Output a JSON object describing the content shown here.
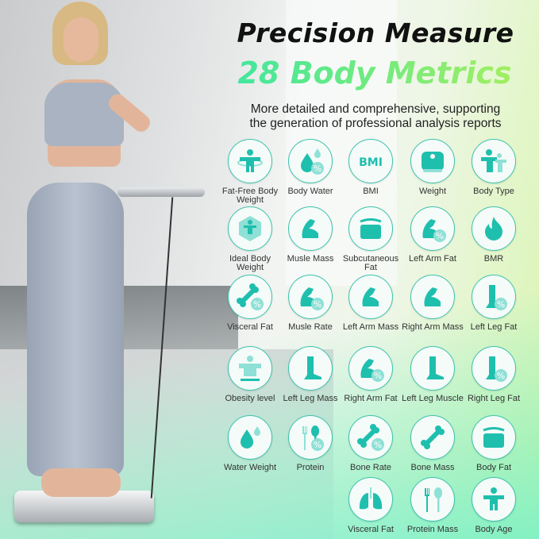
{
  "headline": "Precision Measure",
  "subheadline": "28 Body Metrics",
  "description": [
    "More detailed and comprehensive, supporting",
    "the generation of professional analysis reports"
  ],
  "colors": {
    "accent": "#1fbfae",
    "headline_gradient": [
      "#3ee6a0",
      "#a6ef5e"
    ]
  },
  "metrics": [
    {
      "label": "Fat-Free Body Weight",
      "icon": "person-hoop-icon"
    },
    {
      "label": "Body Water",
      "icon": "water-percent-icon"
    },
    {
      "label": "BMI",
      "icon": "bmi-text-icon"
    },
    {
      "label": "Weight",
      "icon": "scale-icon"
    },
    {
      "label": "Body Type",
      "icon": "body-type-icon"
    },
    {
      "label": "Ideal Body Weight",
      "icon": "person-hexagon-icon"
    },
    {
      "label": "Musle Mass",
      "icon": "arm-muscle-icon"
    },
    {
      "label": "Subcutaneous Fat",
      "icon": "fat-layer-icon"
    },
    {
      "label": "Left Arm Fat",
      "icon": "arm-percent-icon"
    },
    {
      "label": "BMR",
      "icon": "flame-icon"
    },
    {
      "label": "Visceral Fat",
      "icon": "bone-percent-icon"
    },
    {
      "label": "Musle Rate",
      "icon": "arm-percent-icon"
    },
    {
      "label": "Left Arm Mass",
      "icon": "arm-muscle-icon"
    },
    {
      "label": "Right Arm Mass",
      "icon": "arm-muscle-icon"
    },
    {
      "label": "Left Leg Fat",
      "icon": "leg-percent-icon"
    },
    {
      "label": "Obesity level",
      "icon": "obesity-icon"
    },
    {
      "label": "Left Leg Mass",
      "icon": "leg-icon"
    },
    {
      "label": "Right Arm Fat",
      "icon": "arm-percent-icon"
    },
    {
      "label": "Left Leg Muscle",
      "icon": "leg-icon"
    },
    {
      "label": "Right Leg Fat",
      "icon": "leg-percent-icon"
    },
    {
      "label": "Water Weight",
      "icon": "water-drop-icon"
    },
    {
      "label": "Protein",
      "icon": "fork-spoon-percent-icon"
    },
    {
      "label": "Bone Rate",
      "icon": "bone-percent-icon"
    },
    {
      "label": "Bone Mass",
      "icon": "bone-icon"
    },
    {
      "label": "Body Fat",
      "icon": "fat-layer-icon"
    },
    {
      "label": "Visceral Fat",
      "icon": "lungs-icon"
    },
    {
      "label": "Protein Mass",
      "icon": "fork-spoon-icon"
    },
    {
      "label": "Body Age",
      "icon": "person-icon"
    }
  ]
}
